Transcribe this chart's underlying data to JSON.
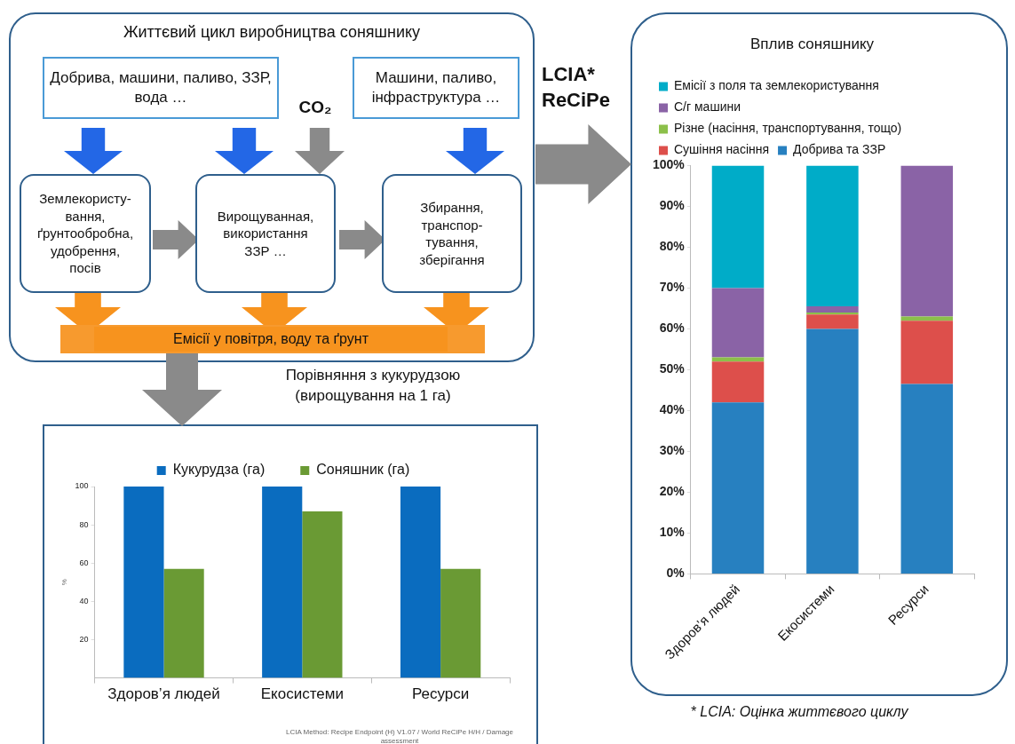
{
  "chart_data": [
    {
      "type": "other",
      "title": "Життєвий цикл виробництва соняшнику",
      "annotations": [
        "Добрива, машини, паливо, ЗЗР, вода …",
        "Машини, паливо, інфраструктура …",
        "CO₂",
        "Землекористу-\nвання,\nґрунтообробна,\nудобрення,\nпосів",
        "Вирощуванная,\nвикористання\nЗЗР …",
        "Збирання,\nтранспор-\nтування,\nзберігання",
        "Емісії у повітря, воду та ґрунт"
      ]
    },
    {
      "type": "bar",
      "title": "Вплив соняшнику",
      "stacked": true,
      "legend": "top",
      "grid": false,
      "categories": [
        "Здоров’я людей",
        "Екосистеми",
        "Ресурси"
      ],
      "series": [
        {
          "name": "Добрива та ЗЗР",
          "color": "#2780c0",
          "values": [
            42,
            60,
            46.5
          ]
        },
        {
          "name": "Сушіння насіння",
          "color": "#dd4f4b",
          "values": [
            10,
            3.5,
            15.5
          ]
        },
        {
          "name": "Різне (насіння, транспортування, тощо)",
          "color": "#8cc04a",
          "values": [
            1,
            0.5,
            1
          ]
        },
        {
          "name": "С/г машини",
          "color": "#8a63a6",
          "values": [
            17,
            1.5,
            37
          ]
        },
        {
          "name": "Емісії з поля та землекористування",
          "color": "#00acc8",
          "values": [
            30,
            34.5,
            0
          ]
        }
      ],
      "ylim": [
        0,
        100
      ],
      "yticks": [
        {
          "value": 0,
          "label": "0%"
        },
        {
          "value": 10,
          "label": "10%"
        },
        {
          "value": 20,
          "label": "20%"
        },
        {
          "value": 30,
          "label": "30%"
        },
        {
          "value": 40,
          "label": "40%"
        },
        {
          "value": 50,
          "label": "50%"
        },
        {
          "value": 60,
          "label": "60%"
        },
        {
          "value": 70,
          "label": "70%"
        },
        {
          "value": 80,
          "label": "80%"
        },
        {
          "value": 90,
          "label": "90%"
        },
        {
          "value": 100,
          "label": "100%"
        }
      ],
      "annotations": [
        "LCIA*\nReCiPe",
        "* LCIA: Оцінка життєвого циклу"
      ]
    },
    {
      "type": "bar",
      "title": "Порівняння з кукурудзою\n(вирощування на 1 га)",
      "ylabel": "%",
      "legend": "top",
      "grid": false,
      "categories": [
        "Здоров’я людей",
        "Екосистеми",
        "Ресурси"
      ],
      "series": [
        {
          "name": "Кукурудза (га)",
          "color": "#0a6cbf",
          "values": [
            100,
            100,
            100
          ]
        },
        {
          "name": "Соняшник (га)",
          "color": "#6a9a34",
          "values": [
            57,
            87,
            57
          ]
        }
      ],
      "ylim": [
        0,
        100
      ],
      "yticks": [
        20,
        40,
        60,
        80,
        100
      ],
      "annotations": [
        "LCIA Method: Recipe Endpoint (H) V1.07 / World ReCiPe H/H / Damage assessment"
      ]
    }
  ]
}
